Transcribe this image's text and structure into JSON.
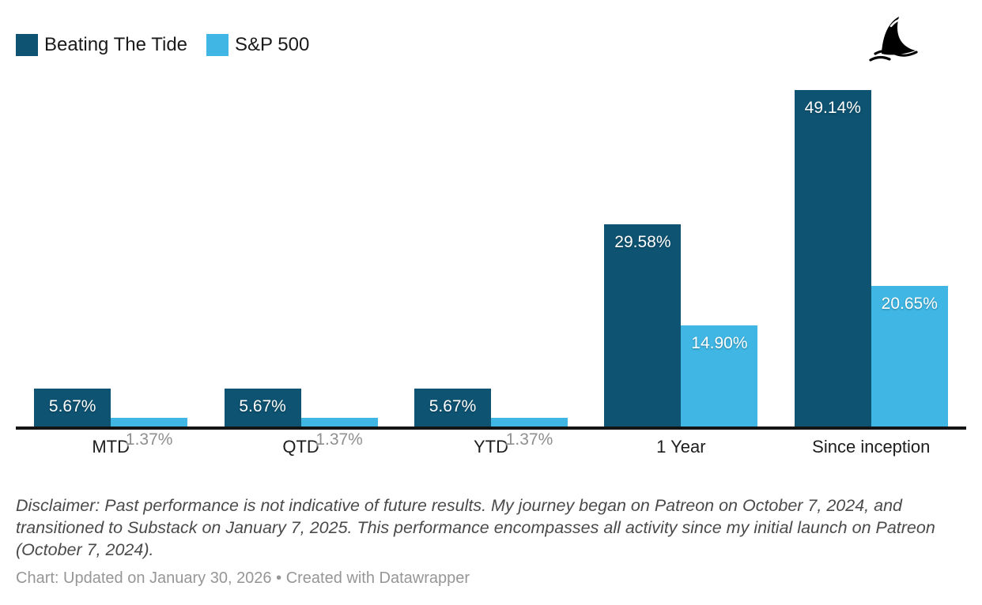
{
  "brand": {
    "logo_icon": "shark-fin-icon",
    "logo_color": "#000000"
  },
  "legend": {
    "position": "top-left",
    "items": [
      {
        "label": "Beating The Tide",
        "color": "#0e5372"
      },
      {
        "label": "S&P 500",
        "color": "#3fb6e3"
      }
    ]
  },
  "chart_data": {
    "type": "bar",
    "orientation": "vertical-grouped",
    "categories": [
      "MTD",
      "QTD",
      "YTD",
      "1 Year",
      "Since inception"
    ],
    "series": [
      {
        "name": "Beating The Tide",
        "color": "#0e5372",
        "values": [
          5.67,
          5.67,
          5.67,
          29.58,
          49.14
        ],
        "labels": [
          "5.67%",
          "5.67%",
          "5.67%",
          "29.58%",
          "49.14%"
        ]
      },
      {
        "name": "S&P 500",
        "color": "#3fb6e3",
        "values": [
          1.37,
          1.37,
          1.37,
          14.9,
          20.65
        ],
        "labels": [
          "1.37%",
          "1.37%",
          "1.37%",
          "14.90%",
          "20.65%"
        ]
      }
    ],
    "title": "",
    "xlabel": "",
    "ylabel": "",
    "ylim": [
      0,
      49.14
    ],
    "grid": false,
    "value_label_unit": "%",
    "legend_position": "top-left"
  },
  "disclaimer": "Disclaimer: Past performance is not indicative of future results. My journey began on Patreon on October 7, 2024, and transitioned to Substack on January 7, 2025. This performance encompasses all activity since my initial launch on Patreon (October 7, 2024).",
  "footer": {
    "credit": "Chart: Updated on January 30, 2026",
    "separator": " • ",
    "created_with": "Created with Datawrapper"
  }
}
